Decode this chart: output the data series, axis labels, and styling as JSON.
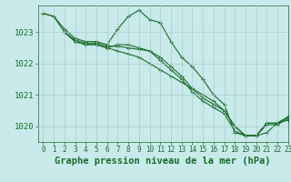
{
  "background_color": "#c8eaea",
  "grid_color": "#aacccc",
  "line_color": "#1a6b2a",
  "title": "Graphe pression niveau de la mer (hPa)",
  "xlim": [
    -0.5,
    23
  ],
  "ylim": [
    1019.5,
    1023.85
  ],
  "yticks": [
    1020,
    1021,
    1022,
    1023
  ],
  "xticks": [
    0,
    1,
    2,
    3,
    4,
    5,
    6,
    7,
    8,
    9,
    10,
    11,
    12,
    13,
    14,
    15,
    16,
    17,
    18,
    19,
    20,
    21,
    22,
    23
  ],
  "series": [
    {
      "x": [
        0,
        1,
        2,
        3,
        4,
        5,
        6,
        7,
        8,
        9,
        10,
        11,
        12,
        13,
        14,
        15,
        16,
        17,
        18,
        19,
        20,
        21,
        22,
        23
      ],
      "y": [
        1023.6,
        1023.5,
        1023.1,
        1022.8,
        1022.7,
        1022.7,
        1022.6,
        1023.1,
        1023.5,
        1023.7,
        1023.4,
        1023.3,
        1022.7,
        1022.2,
        1021.9,
        1021.5,
        1021.0,
        1020.7,
        1019.8,
        1019.7,
        1019.7,
        1019.8,
        1020.1,
        1020.3
      ]
    },
    {
      "x": [
        0,
        1,
        2,
        3,
        4,
        5,
        6,
        7,
        8,
        9,
        10,
        11,
        12,
        13,
        14,
        15,
        16,
        17,
        18,
        19,
        20,
        21,
        22,
        23
      ],
      "y": [
        1023.6,
        1023.5,
        1023.0,
        1022.7,
        1022.6,
        1022.6,
        1022.5,
        1022.4,
        1022.3,
        1022.2,
        1022.0,
        1021.8,
        1021.6,
        1021.4,
        1021.2,
        1021.0,
        1020.8,
        1020.5,
        1020.0,
        1019.7,
        1019.7,
        1020.1,
        1020.1,
        1020.2
      ]
    },
    {
      "x": [
        2,
        3,
        4,
        5,
        6,
        7,
        8,
        9,
        10,
        11,
        12,
        13,
        14,
        15,
        16,
        17,
        18,
        19,
        20,
        21,
        22,
        23
      ],
      "y": [
        1023.0,
        1022.7,
        1022.6,
        1022.6,
        1022.5,
        1022.6,
        1022.6,
        1022.5,
        1022.4,
        1022.2,
        1021.9,
        1021.6,
        1021.2,
        1020.9,
        1020.7,
        1020.5,
        1020.0,
        1019.7,
        1019.7,
        1020.1,
        1020.1,
        1020.3
      ]
    },
    {
      "x": [
        2,
        3,
        4,
        5,
        6,
        7,
        8,
        9,
        10,
        11,
        12,
        13,
        14,
        15,
        16,
        17,
        18,
        19,
        20,
        21,
        22,
        23
      ],
      "y": [
        1023.0,
        1022.75,
        1022.65,
        1022.65,
        1022.55,
        1022.55,
        1022.5,
        1022.45,
        1022.4,
        1022.1,
        1021.8,
        1021.5,
        1021.1,
        1020.8,
        1020.6,
        1020.4,
        1019.85,
        1019.7,
        1019.7,
        1020.05,
        1020.05,
        1020.25
      ]
    }
  ],
  "title_color": "#1a6b2a",
  "title_fontsize": 7.5,
  "tick_color": "#1a6b2a",
  "tick_fontsize": 5.5,
  "marker": "+",
  "markersize": 3.5,
  "linewidth": 0.8
}
